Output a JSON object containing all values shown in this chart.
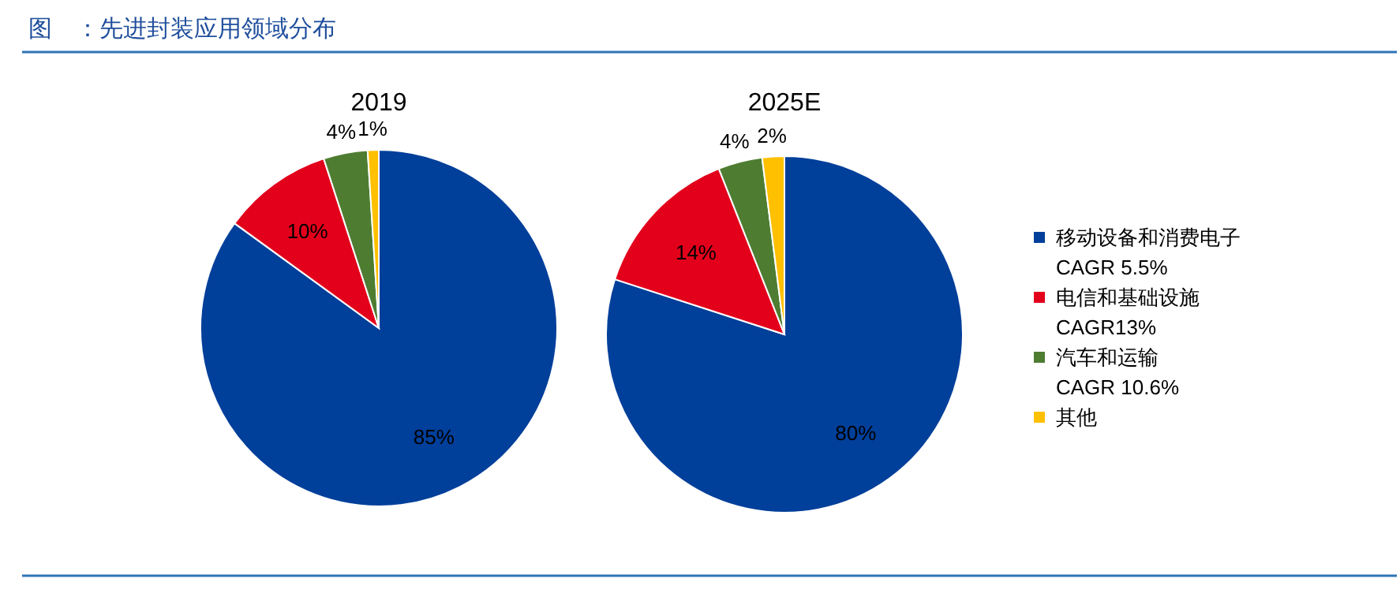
{
  "chart_data": [
    {
      "type": "pie",
      "title": "2019",
      "annotations": [
        "图　：先进封装应用领域分布"
      ],
      "categories": [
        null,
        null,
        null,
        null
      ],
      "values": [
        85,
        10,
        4,
        1
      ],
      "value_labels": [
        "85%",
        "10%",
        "4%",
        "1%"
      ],
      "colors": [
        "#003f9a",
        "#e3001b",
        "#4e7d32",
        "#ffc000"
      ]
    },
    {
      "type": "pie",
      "title": "2025E",
      "categories": [
        "移动设备和消费电子\nCAGR 5.5%",
        "电信和基础设施\nCAGR13%",
        "汽车和运输\nCAGR 10.6%",
        "其他"
      ],
      "values": [
        80,
        14,
        4,
        2
      ],
      "value_labels": [
        "80%",
        "14%",
        "4%",
        "2%"
      ],
      "colors": [
        "#003f9a",
        "#e3001b",
        "#4e7d32",
        "#ffc000"
      ],
      "legend": "right"
    }
  ]
}
